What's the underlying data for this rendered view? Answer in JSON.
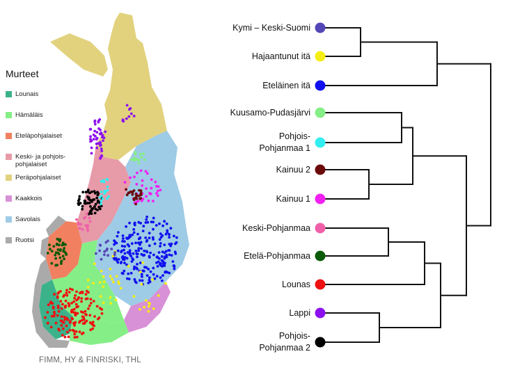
{
  "legend": {
    "title": "Murteet",
    "items": [
      {
        "label": "Lounais",
        "color": "#3cb28a"
      },
      {
        "label": "Hämäläis",
        "color": "#86ee86"
      },
      {
        "label": "Eteläpohjalaiset",
        "color": "#f08060"
      },
      {
        "label": "Keski- ja pohjois-\npohjalaiset",
        "color": "#e79aa8"
      },
      {
        "label": "Peräpohjalaiset",
        "color": "#e2d27e"
      },
      {
        "label": "Kaakkois",
        "color": "#d890d6"
      },
      {
        "label": "Savolais",
        "color": "#9ecbe6"
      },
      {
        "label": "Ruotsi",
        "color": "#aaaaaa"
      }
    ]
  },
  "credit": "FIMM, HY & FINRISKI, THL",
  "dendrogram": {
    "leaves": [
      {
        "label": "Kymi – Keski-Suomi",
        "color": "#5346b6"
      },
      {
        "label": "Hajaantunut itä",
        "color": "#f5ee10"
      },
      {
        "label": "Eteläinen itä",
        "color": "#1010ee"
      },
      {
        "label": "Kuusamo-Pudasjärvi",
        "color": "#86ee86"
      },
      {
        "label": "Pohjois-\nPohjanmaa 1",
        "color": "#33eef0"
      },
      {
        "label": "Kainuu 2",
        "color": "#6b0a0a"
      },
      {
        "label": "Kainuu 1",
        "color": "#f020f0"
      },
      {
        "label": "Keski-Pohjanmaa",
        "color": "#f060a8"
      },
      {
        "label": "Etelä-Pohjanmaa",
        "color": "#0a5a0a"
      },
      {
        "label": "Lounas",
        "color": "#ee1111"
      },
      {
        "label": "Lappi",
        "color": "#8c10ee"
      },
      {
        "label": "Pohjois-\nPohjanmaa 2",
        "color": "#000000"
      }
    ]
  }
}
